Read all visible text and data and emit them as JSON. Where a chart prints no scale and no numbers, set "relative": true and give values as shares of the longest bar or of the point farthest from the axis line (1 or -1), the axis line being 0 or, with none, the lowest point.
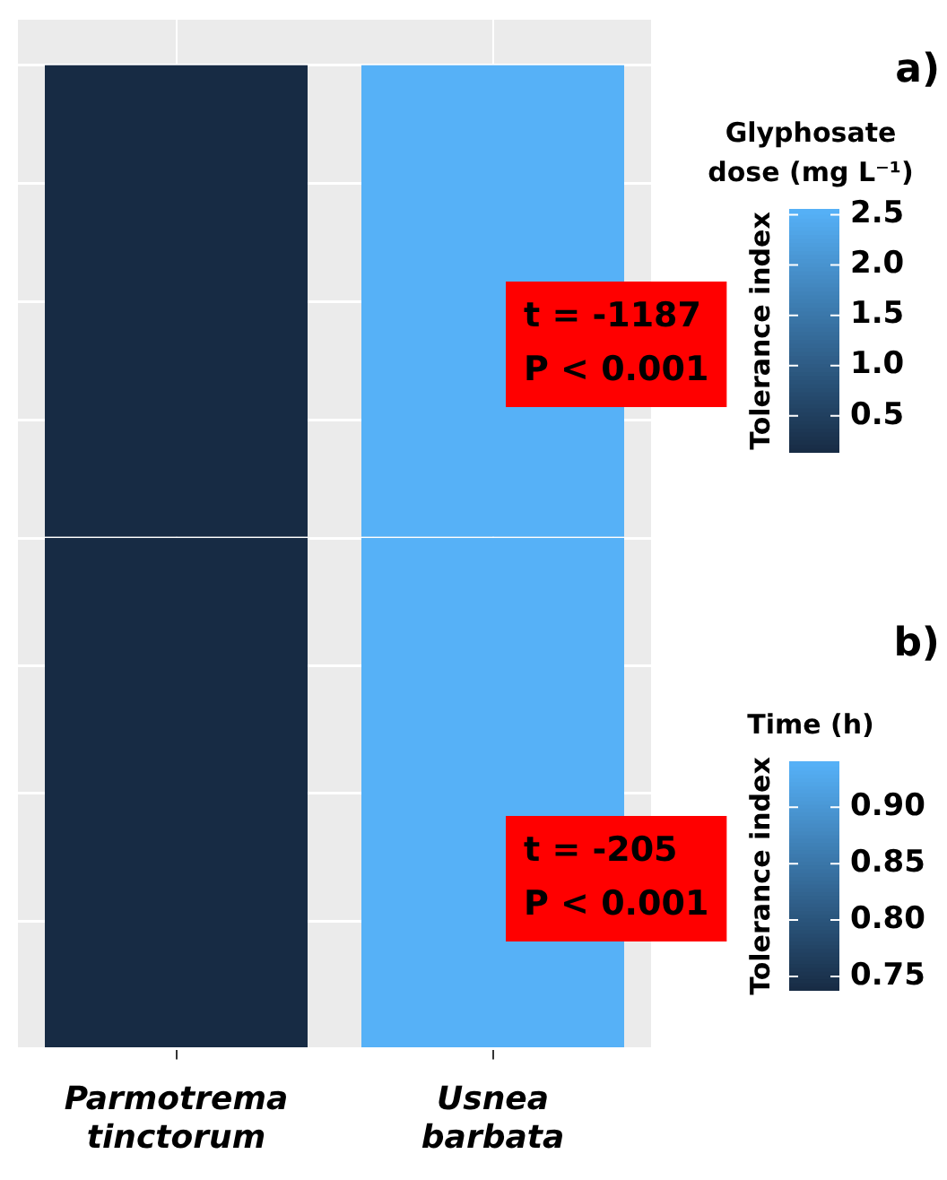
{
  "chart_data": [
    {
      "type": "bar",
      "categories": [
        null,
        null
      ],
      "values": [
        1,
        1
      ],
      "colors": [
        "#172b44",
        "#56b1f7"
      ],
      "relative": true,
      "grid": true,
      "tick_labels": false,
      "legend": false,
      "legend_title": "Glyphosate dose (mg L⁻¹)",
      "clabel": "Tolerance index",
      "clim": [
        0.14,
        2.55
      ],
      "cticks": [
        0.5,
        {
          "value": 1,
          "label": "1.0"
        },
        1.5,
        {
          "value": 2,
          "label": "2.0"
        },
        2.5
      ],
      "annotations": [
        "a)",
        "t = -1187",
        "P < 0.001"
      ]
    },
    {
      "type": "bar",
      "categories": [
        "Parmotrema tinctorum",
        "Usnea barbata"
      ],
      "values": [
        1,
        1
      ],
      "colors": [
        "#172b44",
        "#56b1f7"
      ],
      "relative": true,
      "grid": true,
      "tick_labels": "x",
      "legend": false,
      "legend_title": "Time (h)",
      "clabel": "Tolerance index",
      "clim": [
        0.738,
        0.94
      ],
      "cticks": [
        0.75,
        {
          "value": 0.8,
          "label": "0.80"
        },
        0.85,
        {
          "value": 0.9,
          "label": "0.90"
        }
      ],
      "annotations": [
        "b)",
        "t = -205",
        "P < 0.001"
      ]
    }
  ]
}
